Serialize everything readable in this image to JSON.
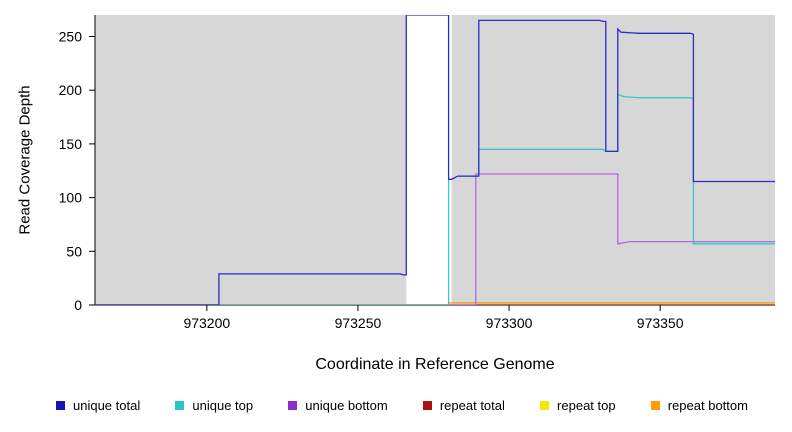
{
  "chart_data": {
    "type": "line",
    "title": "",
    "xlabel": "Coordinate in Reference Genome",
    "ylabel": "Read Coverage Depth",
    "xlim": [
      973163,
      973388
    ],
    "ylim": [
      0,
      270
    ],
    "x_ticks": [
      973200,
      973250,
      973300,
      973350
    ],
    "y_ticks": [
      0,
      50,
      100,
      150,
      200,
      250
    ],
    "plot_bg": "#d7d7d7",
    "grid": "off",
    "legend_position": "bottom",
    "shaded_regions": [
      [
        973163,
        973266
      ],
      [
        973281,
        973388
      ]
    ],
    "series": [
      {
        "name": "repeat top",
        "color": "#f2e900",
        "points": [
          [
            973163,
            0
          ],
          [
            973388,
            0
          ]
        ]
      },
      {
        "name": "repeat total",
        "color": "#bb1111",
        "points": [
          [
            973163,
            0
          ],
          [
            973388,
            0
          ]
        ]
      },
      {
        "name": "repeat bottom",
        "color": "#ff9d00",
        "points": [
          [
            973163,
            0
          ],
          [
            973280,
            0
          ],
          [
            973280,
            2
          ],
          [
            973388,
            2
          ]
        ]
      },
      {
        "name": "unique bottom",
        "color": "#b266e2",
        "points": [
          [
            973163,
            0
          ],
          [
            973289,
            0
          ],
          [
            973289,
            122
          ],
          [
            973335,
            122
          ],
          [
            973336,
            122
          ],
          [
            973336,
            57
          ],
          [
            973340,
            59
          ],
          [
            973388,
            59
          ]
        ]
      },
      {
        "name": "unique top",
        "color": "#35c8c8",
        "points": [
          [
            973163,
            0
          ],
          [
            973280,
            0
          ],
          [
            973280,
            117
          ],
          [
            973281,
            117
          ],
          [
            973283,
            120
          ],
          [
            973290,
            120
          ],
          [
            973290,
            145
          ],
          [
            973331,
            145
          ],
          [
            973332,
            143
          ],
          [
            973336,
            143
          ],
          [
            973336,
            196
          ],
          [
            973338,
            194
          ],
          [
            973343,
            193
          ],
          [
            973360,
            193
          ],
          [
            973361,
            192
          ],
          [
            973361,
            57
          ],
          [
            973388,
            57
          ]
        ]
      },
      {
        "name": "unique total",
        "color": "#2b2bd0",
        "points": [
          [
            973163,
            0
          ],
          [
            973204,
            0
          ],
          [
            973204,
            29
          ],
          [
            973264,
            29
          ],
          [
            973265,
            28
          ],
          [
            973266,
            28
          ],
          [
            973266,
            270
          ],
          [
            973280,
            270
          ],
          [
            973280,
            117
          ],
          [
            973281,
            117
          ],
          [
            973283,
            120
          ],
          [
            973290,
            120
          ],
          [
            973290,
            265
          ],
          [
            973330,
            265
          ],
          [
            973331,
            264
          ],
          [
            973332,
            264
          ],
          [
            973332,
            143
          ],
          [
            973336,
            143
          ],
          [
            973336,
            257
          ],
          [
            973337,
            254
          ],
          [
            973343,
            253
          ],
          [
            973360,
            253
          ],
          [
            973361,
            252
          ],
          [
            973361,
            115
          ],
          [
            973388,
            115
          ]
        ]
      }
    ],
    "legend": [
      {
        "label": "unique total",
        "color": "#1515b5"
      },
      {
        "label": "unique top",
        "color": "#2bc4c4"
      },
      {
        "label": "unique bottom",
        "color": "#8c2fc8"
      },
      {
        "label": "repeat total",
        "color": "#aa1111"
      },
      {
        "label": "repeat top",
        "color": "#f2e900"
      },
      {
        "label": "repeat bottom",
        "color": "#ff9d00"
      }
    ]
  }
}
